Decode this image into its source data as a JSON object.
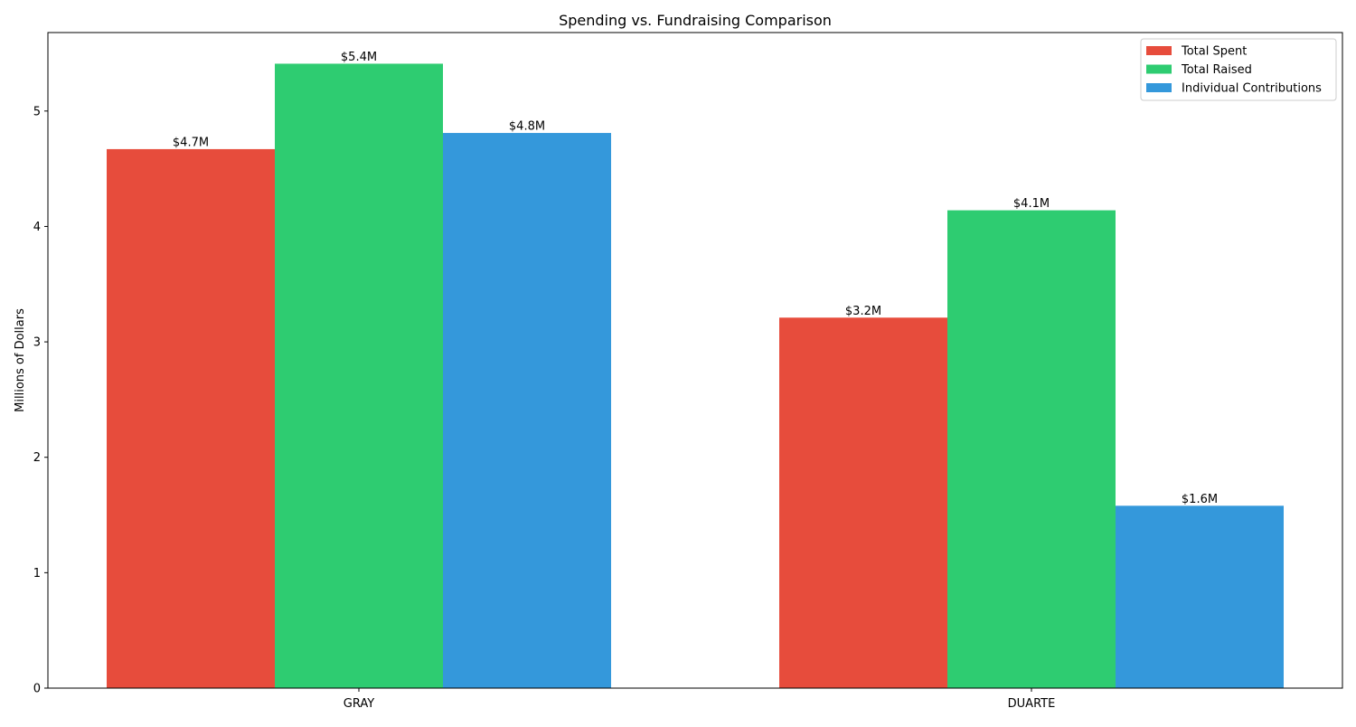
{
  "chart_data": {
    "type": "bar",
    "title": "Spending vs. Fundraising Comparison",
    "xlabel": "",
    "ylabel": "Millions of Dollars",
    "categories": [
      "GRAY",
      "DUARTE"
    ],
    "series": [
      {
        "name": "Total Spent",
        "color": "#e74c3c",
        "values": [
          4.67,
          3.21
        ],
        "labels": [
          "$4.7M",
          "$3.2M"
        ]
      },
      {
        "name": "Total Raised",
        "color": "#2ecc71",
        "values": [
          5.41,
          4.14
        ],
        "labels": [
          "$5.4M",
          "$4.1M"
        ]
      },
      {
        "name": "Individual Contributions",
        "color": "#3498db",
        "values": [
          4.81,
          1.58
        ],
        "labels": [
          "$4.8M",
          "$1.6M"
        ]
      }
    ],
    "yticks": [
      0,
      1,
      2,
      3,
      4,
      5
    ],
    "ylim": [
      0,
      5.68
    ],
    "legend_position": "top-right",
    "grid": false
  }
}
